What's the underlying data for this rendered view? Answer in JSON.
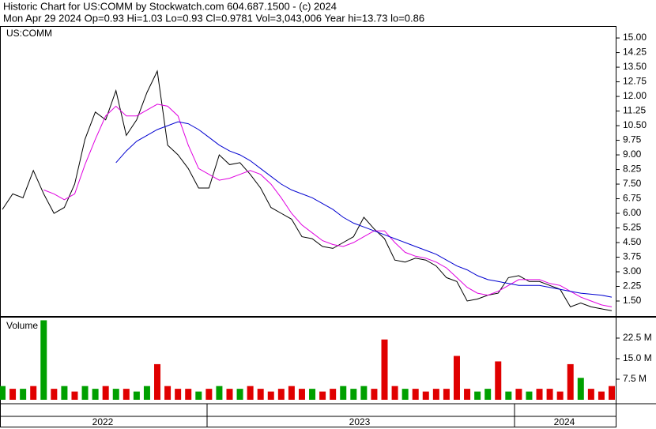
{
  "chart_data": {
    "type": "stock",
    "title": "Historic Chart for US:COMM by Stockwatch.com 604.687.1500 - (c) 2024",
    "subtitle": "Mon Apr 29 2024  Op=0.93  Hi=1.03  Lo=0.93  Cl=0.9781  Vol=3,043,006  Year hi=13.73  lo=0.86",
    "symbol": "US:COMM",
    "volume_title": "Volume",
    "periods": [
      "2022",
      "2023",
      "2024"
    ],
    "ylim": [
      0.73,
      15.53
    ],
    "yticks": [
      {
        "value": 15,
        "label": "15.00"
      },
      {
        "value": 14.25,
        "label": "14.25"
      },
      {
        "value": 13.5,
        "label": "13.50"
      },
      {
        "value": 12.75,
        "label": "12.75"
      },
      {
        "value": 12,
        "label": "12.00"
      },
      {
        "value": 11.25,
        "label": "11.25"
      },
      {
        "value": 10.5,
        "label": "10.50"
      },
      {
        "value": 9.75,
        "label": "9.75"
      },
      {
        "value": 9,
        "label": "9.00"
      },
      {
        "value": 8.25,
        "label": "8.25"
      },
      {
        "value": 7.5,
        "label": "7.50"
      },
      {
        "value": 6.75,
        "label": "6.75"
      },
      {
        "value": 6,
        "label": "6.00"
      },
      {
        "value": 5.25,
        "label": "5.25"
      },
      {
        "value": 4.5,
        "label": "4.50"
      },
      {
        "value": 3.75,
        "label": "3.75"
      },
      {
        "value": 3,
        "label": "3.00"
      },
      {
        "value": 2.25,
        "label": "2.25"
      },
      {
        "value": 1.5,
        "label": "1.50"
      }
    ],
    "series": [
      {
        "color": "#000000",
        "values": [
          6.2,
          7.0,
          6.8,
          8.2,
          7.0,
          6.0,
          6.3,
          7.5,
          9.8,
          11.2,
          10.8,
          12.3,
          10.0,
          10.8,
          12.2,
          13.3,
          9.5,
          9.0,
          8.3,
          7.3,
          7.3,
          9.0,
          8.5,
          8.6,
          8.0,
          7.3,
          6.3,
          6.0,
          5.7,
          4.8,
          4.7,
          4.3,
          4.2,
          4.5,
          4.8,
          5.8,
          5.2,
          4.7,
          3.6,
          3.5,
          3.7,
          3.6,
          3.3,
          2.7,
          2.5,
          1.5,
          1.6,
          1.8,
          1.9,
          2.7,
          2.8,
          2.5,
          2.5,
          2.3,
          2.1,
          1.2,
          1.4,
          1.2,
          1.1,
          1.0
        ]
      },
      {
        "color": "#e000e0",
        "values": [
          null,
          null,
          null,
          null,
          7.2,
          7.0,
          6.7,
          7.0,
          8.5,
          9.8,
          11.0,
          11.5,
          11.0,
          11.0,
          11.3,
          11.6,
          11.5,
          11.0,
          9.5,
          8.3,
          8.0,
          7.7,
          7.8,
          8.0,
          8.2,
          8.0,
          7.5,
          6.8,
          6.0,
          5.4,
          5.0,
          4.6,
          4.4,
          4.3,
          4.5,
          4.8,
          5.1,
          5.1,
          4.5,
          4.0,
          3.8,
          3.7,
          3.5,
          3.2,
          2.7,
          2.2,
          1.9,
          1.8,
          2.0,
          2.3,
          2.6,
          2.6,
          2.6,
          2.4,
          2.3,
          2.0,
          1.7,
          1.5,
          1.3,
          1.2
        ]
      },
      {
        "color": "#0000d0",
        "values": [
          null,
          null,
          null,
          null,
          null,
          null,
          null,
          null,
          null,
          null,
          null,
          8.6,
          9.2,
          9.7,
          10.0,
          10.3,
          10.5,
          10.7,
          10.6,
          10.3,
          9.9,
          9.5,
          9.2,
          9.0,
          8.7,
          8.3,
          7.9,
          7.5,
          7.2,
          7.0,
          6.8,
          6.5,
          6.2,
          5.8,
          5.5,
          5.3,
          5.1,
          4.9,
          4.7,
          4.5,
          4.3,
          4.1,
          3.9,
          3.6,
          3.3,
          3.1,
          2.8,
          2.6,
          2.5,
          2.4,
          2.3,
          2.3,
          2.3,
          2.2,
          2.1,
          2.0,
          1.9,
          1.85,
          1.8,
          1.7
        ]
      }
    ],
    "volume": {
      "ylim": [
        0,
        29.7
      ],
      "yticks": [
        {
          "value": 22.5,
          "label": "22.5 M"
        },
        {
          "value": 15,
          "label": "15.0 M"
        },
        {
          "value": 7.5,
          "label": "7.5 M"
        }
      ],
      "values": [
        5,
        4,
        4,
        5,
        29,
        4,
        5,
        3,
        5,
        4,
        5,
        4,
        4,
        3,
        5,
        13,
        5,
        4,
        4,
        3,
        4,
        5,
        4,
        4,
        5,
        4,
        3,
        4,
        5,
        4,
        4,
        3,
        4,
        5,
        4,
        5,
        4,
        22,
        5,
        4,
        4,
        3,
        4,
        4,
        16,
        4,
        3,
        4,
        14,
        3,
        4,
        3,
        4,
        4,
        3,
        13,
        8,
        4,
        3,
        5
      ],
      "colors": [
        "#00a000",
        "#e00000",
        "#00a000",
        "#e00000",
        "#00a000",
        "#e00000",
        "#00a000",
        "#e00000",
        "#00a000",
        "#00a000",
        "#e00000",
        "#00a000",
        "#e00000",
        "#00a000",
        "#00a000",
        "#e00000",
        "#e00000",
        "#e00000",
        "#e00000",
        "#00a000",
        "#e00000",
        "#00a000",
        "#e00000",
        "#00a000",
        "#e00000",
        "#e00000",
        "#e00000",
        "#e00000",
        "#e00000",
        "#e00000",
        "#00a000",
        "#e00000",
        "#e00000",
        "#00a000",
        "#00a000",
        "#00a000",
        "#e00000",
        "#e00000",
        "#e00000",
        "#00a000",
        "#e00000",
        "#e00000",
        "#e00000",
        "#e00000",
        "#e00000",
        "#e00000",
        "#00a000",
        "#00a000",
        "#e00000",
        "#00a000",
        "#e00000",
        "#00a000",
        "#e00000",
        "#e00000",
        "#e00000",
        "#e00000",
        "#00a000",
        "#e00000",
        "#e00000",
        "#e00000"
      ]
    }
  }
}
